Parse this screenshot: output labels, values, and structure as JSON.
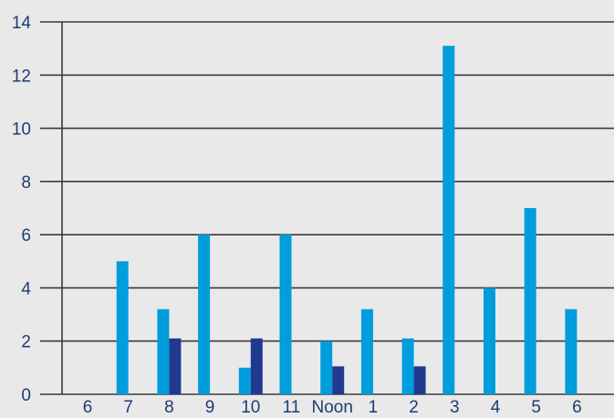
{
  "chart_data": {
    "type": "bar",
    "categories": [
      "6",
      "7",
      "8",
      "9",
      "10",
      "11",
      "Noon",
      "1",
      "2",
      "3",
      "4",
      "5",
      "6"
    ],
    "series": [
      {
        "values": [
          0,
          5,
          3.2,
          6,
          1,
          6,
          2,
          3.2,
          2.1,
          13.1,
          4,
          7,
          3.2
        ]
      },
      {
        "values": [
          0,
          0,
          2.1,
          0,
          2.1,
          0,
          1.05,
          0,
          1.05,
          0,
          0,
          0,
          0
        ]
      }
    ],
    "ylim": [
      0,
      14
    ],
    "yticks": [
      0,
      2,
      4,
      6,
      8,
      10,
      12,
      14
    ],
    "grid": true,
    "colors": {
      "series_a": "#009ddc",
      "series_b": "#1f3a8f",
      "grid": "#3a3a3a",
      "text": "#1f3b73",
      "background": "#e9e9ea"
    }
  }
}
